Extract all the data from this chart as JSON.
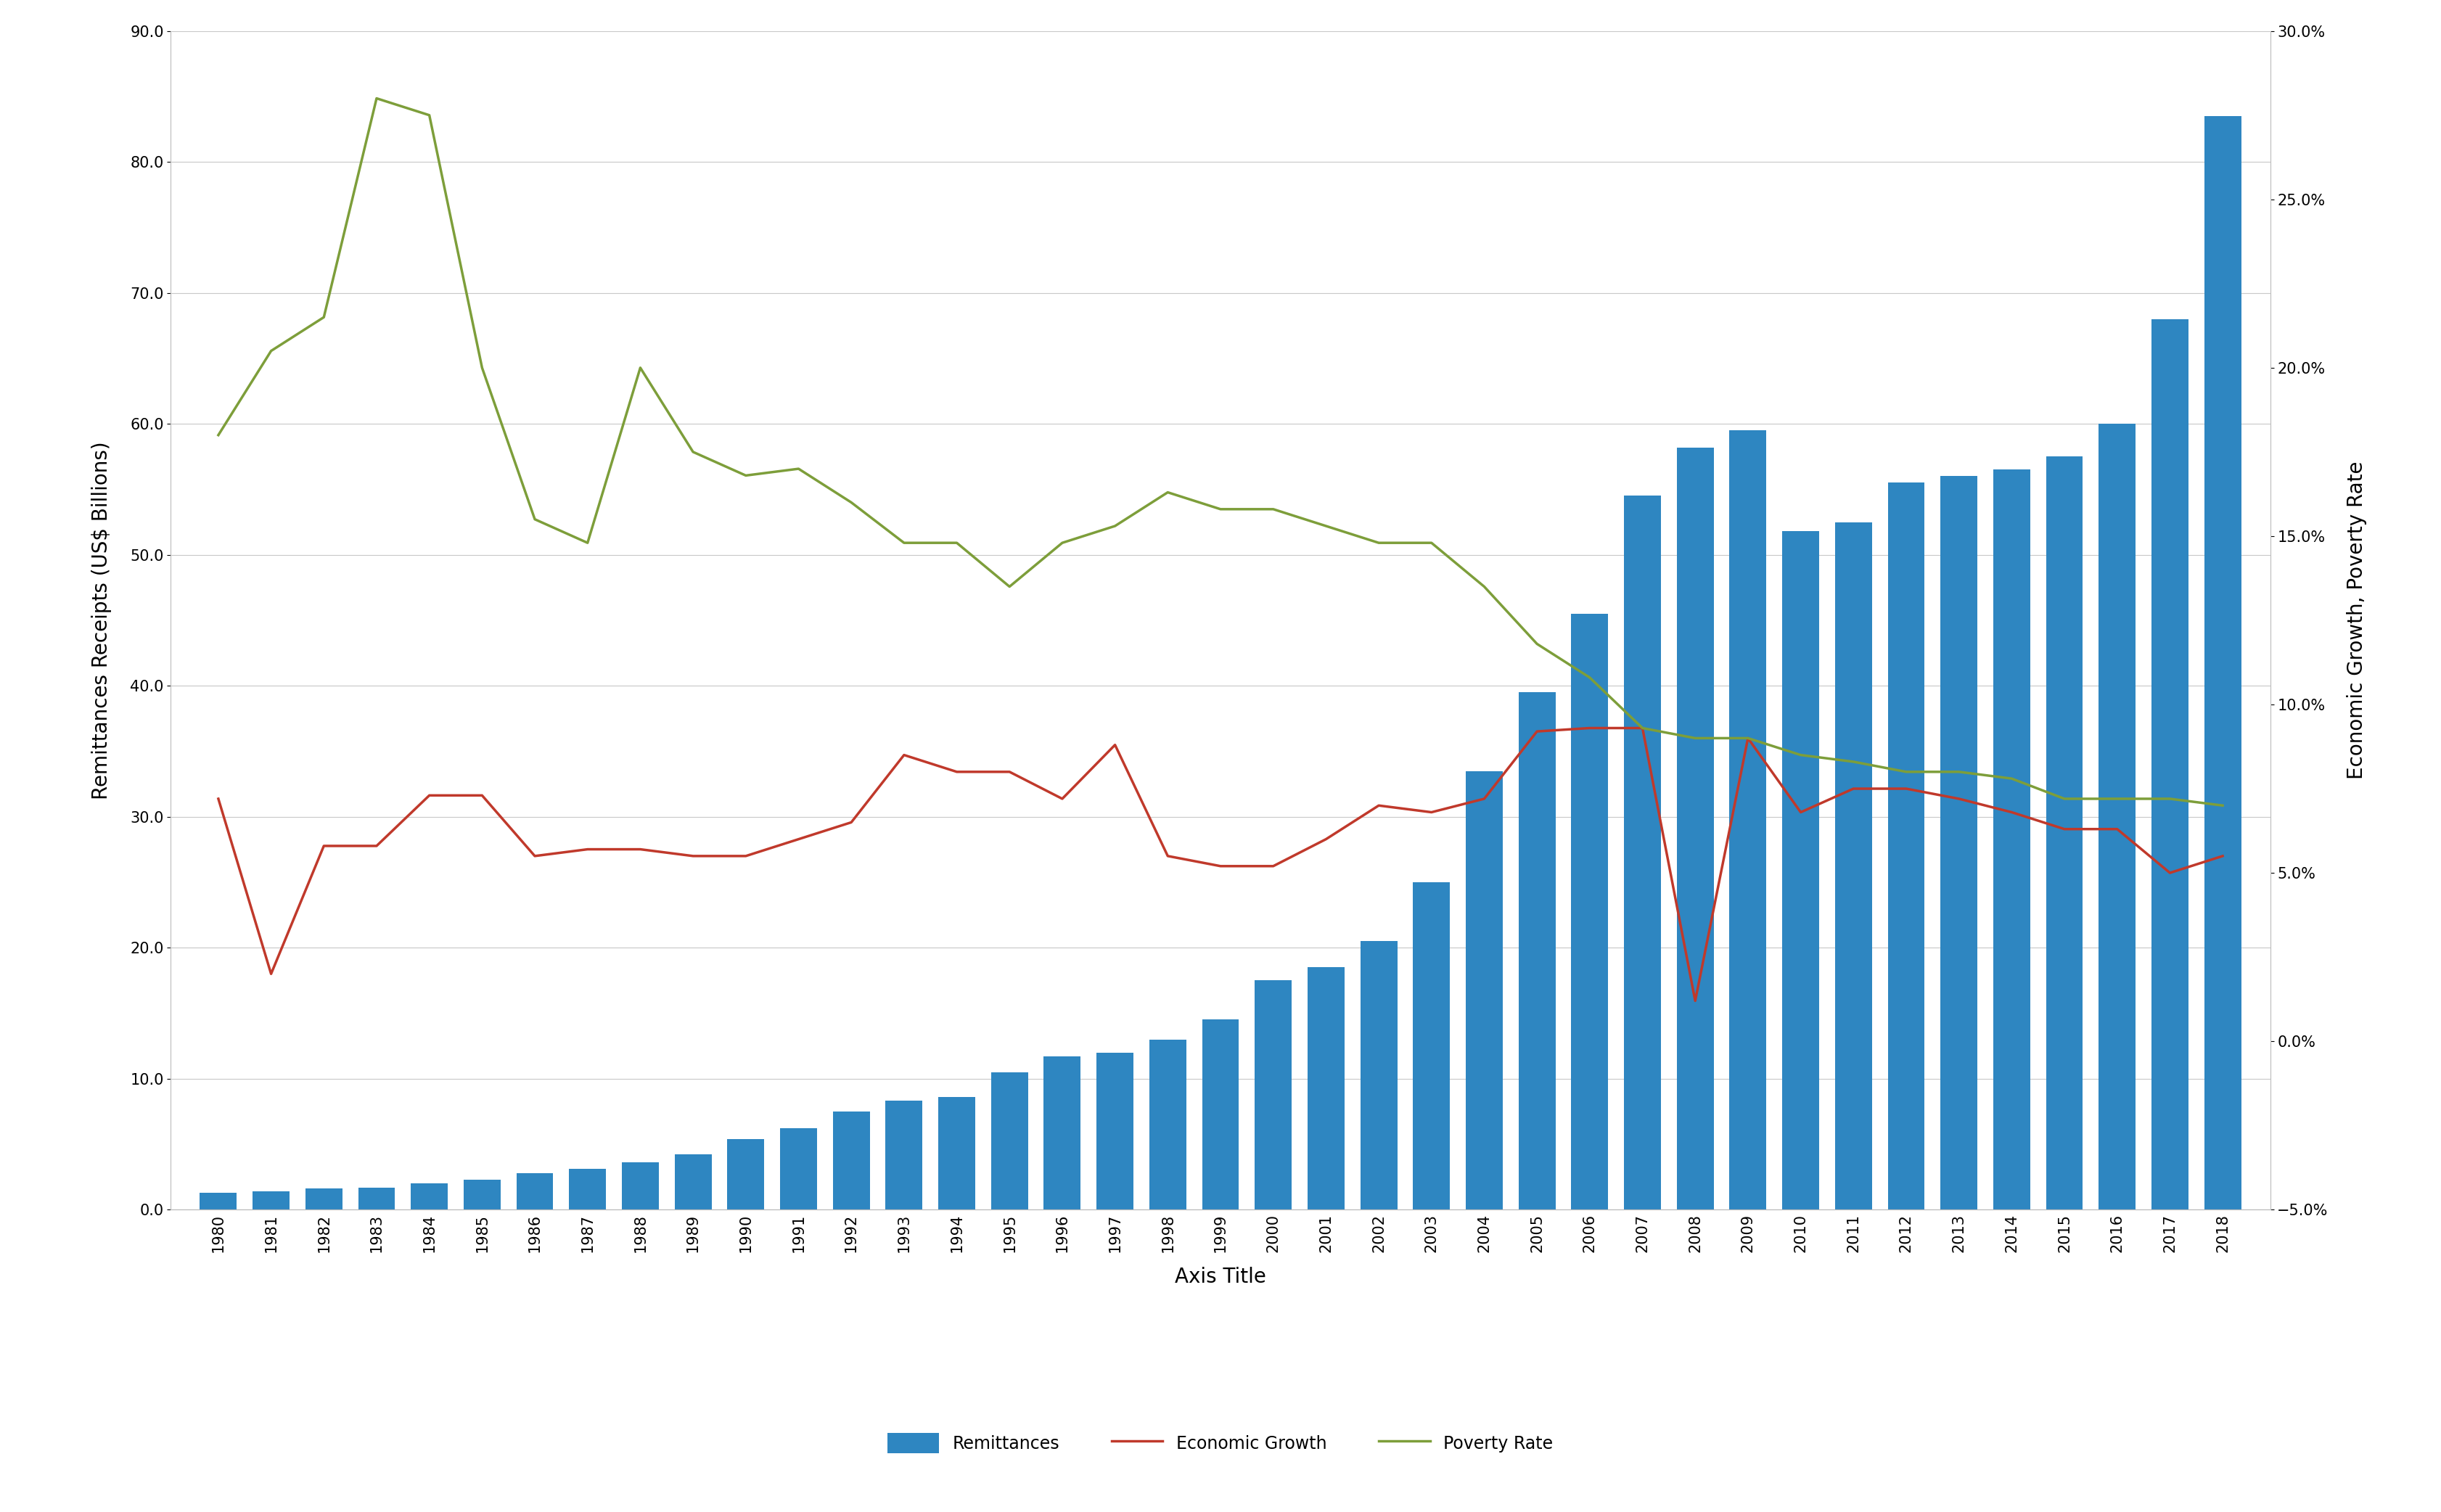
{
  "years": [
    1980,
    1981,
    1982,
    1983,
    1984,
    1985,
    1986,
    1987,
    1988,
    1989,
    1990,
    1991,
    1992,
    1993,
    1994,
    1995,
    1996,
    1997,
    1998,
    1999,
    2000,
    2001,
    2002,
    2003,
    2004,
    2005,
    2006,
    2007,
    2008,
    2009,
    2010,
    2011,
    2012,
    2013,
    2014,
    2015,
    2016,
    2017,
    2018
  ],
  "remittances": [
    1.3,
    1.4,
    1.6,
    1.7,
    2.0,
    2.3,
    2.8,
    3.1,
    3.6,
    4.2,
    5.4,
    6.2,
    7.5,
    8.3,
    8.6,
    10.5,
    11.7,
    12.0,
    13.0,
    14.5,
    17.5,
    18.5,
    20.5,
    25.0,
    33.5,
    39.5,
    45.5,
    54.5,
    58.2,
    59.5,
    51.8,
    52.5,
    55.5,
    56.0,
    56.5,
    57.5,
    60.0,
    68.0,
    83.5
  ],
  "economic_growth": [
    0.072,
    0.02,
    0.058,
    0.058,
    0.073,
    0.073,
    0.055,
    0.057,
    0.057,
    0.055,
    0.055,
    0.06,
    0.065,
    0.085,
    0.08,
    0.08,
    0.072,
    0.088,
    0.055,
    0.052,
    0.052,
    0.06,
    0.07,
    0.068,
    0.072,
    0.092,
    0.093,
    0.093,
    0.012,
    0.09,
    0.068,
    0.075,
    0.075,
    0.072,
    0.068,
    0.063,
    0.063,
    0.05,
    0.055
  ],
  "poverty_rate": [
    0.18,
    0.205,
    0.215,
    0.28,
    0.275,
    0.2,
    0.155,
    0.148,
    0.2,
    0.175,
    0.168,
    0.17,
    0.16,
    0.148,
    0.148,
    0.135,
    0.148,
    0.153,
    0.163,
    0.158,
    0.158,
    0.153,
    0.148,
    0.148,
    0.135,
    0.118,
    0.108,
    0.093,
    0.09,
    0.09,
    0.085,
    0.083,
    0.08,
    0.08,
    0.078,
    0.072,
    0.072,
    0.072,
    0.07
  ],
  "bar_color": "#2E86C1",
  "economic_growth_color": "#C0392B",
  "poverty_rate_color": "#7D9E3A",
  "ylabel_left": "Remittances Receipts (US$ Billions)",
  "ylabel_right": "Economic Growth, Poverty Rate",
  "xlabel": "Axis Title",
  "ylim_left": [
    0.0,
    90.0
  ],
  "ylim_right": [
    -0.05,
    0.3
  ],
  "yticks_left": [
    0.0,
    10.0,
    20.0,
    30.0,
    40.0,
    50.0,
    60.0,
    70.0,
    80.0,
    90.0
  ],
  "yticks_right": [
    -0.05,
    0.0,
    0.05,
    0.1,
    0.15,
    0.2,
    0.25,
    0.3
  ],
  "grid_color": "#C8C8C8",
  "legend_labels": [
    "Remittances",
    "Economic Growth",
    "Poverty Rate"
  ]
}
